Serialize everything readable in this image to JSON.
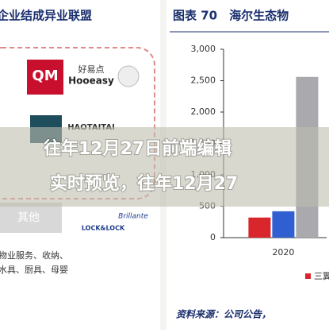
{
  "left_panel": {
    "title": "企业结成异业联盟",
    "logos": [
      "QM",
      "好易点",
      "Hooeasy",
      "HAOTAITAI",
      "其他",
      "LOCK&LOCK",
      "Brillante"
    ],
    "notes": [
      "物业服务、收纳、",
      "水具、厨具、母婴"
    ]
  },
  "overlay": {
    "lines": [
      "往年12月27日前端编辑",
      "实时预览，往年12月27"
    ]
  },
  "chart_data": {
    "type": "bar",
    "title": "图表 70　海尔生态物",
    "categories": [
      "2020"
    ],
    "series": [
      {
        "name": "三翼",
        "color": "#d9262c",
        "values": [
          320
        ]
      },
      {
        "color": "#2f5fd0",
        "values": [
          420
        ]
      },
      {
        "color": "#a9a9ae",
        "values": [
          2560
        ]
      }
    ],
    "ylim": [
      0,
      3000
    ],
    "yticks": [
      0,
      500,
      {
        "value": 1000,
        "label": "1,000"
      },
      {
        "value": 1500,
        "label": "1,500"
      },
      {
        "value": 2000,
        "label": "2,000"
      },
      {
        "value": 2500,
        "label": "2,500"
      },
      {
        "value": 3000,
        "label": "3,000"
      }
    ],
    "source": "资料来源：公司公告，"
  }
}
